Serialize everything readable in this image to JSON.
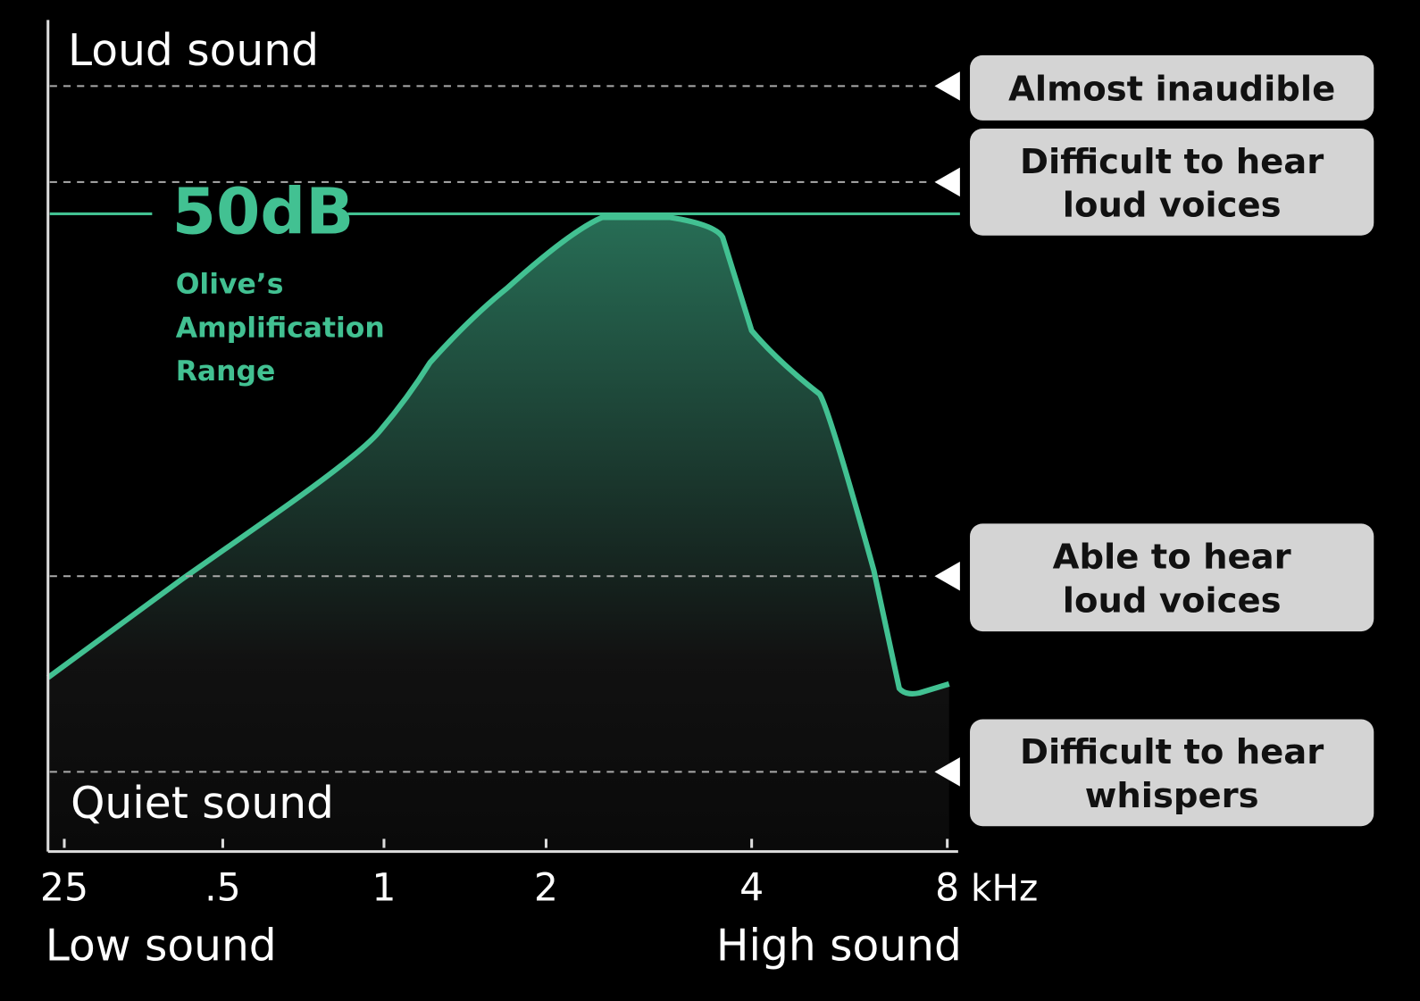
{
  "y_axis": {
    "top_label": "Loud sound",
    "bottom_label": "Quiet sound"
  },
  "x_axis": {
    "ticks": [
      "25",
      ".5",
      "1",
      "2",
      "4",
      "8"
    ],
    "unit": "kHz",
    "low_label": "Low sound",
    "high_label": "High sound"
  },
  "amplification": {
    "level": "50dB",
    "caption": [
      "Olive’s",
      "Amplification",
      "Range"
    ]
  },
  "levels": [
    {
      "lines": [
        "Almost inaudible"
      ]
    },
    {
      "lines": [
        "Difficult to hear",
        "loud voices"
      ]
    },
    {
      "lines": [
        "Able to hear",
        "loud voices"
      ]
    },
    {
      "lines": [
        "Difficult to hear",
        "whispers"
      ]
    }
  ]
}
